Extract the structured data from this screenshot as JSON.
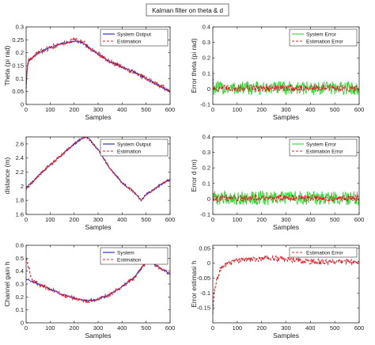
{
  "window": {
    "title": "Kalman filter on theta & d"
  },
  "colors": {
    "system": "#1f1fbf",
    "estimation": "#e0202a",
    "error": "#33d633",
    "axis": "#262626",
    "background": "#ffffff"
  },
  "chart_data": [
    {
      "id": "theta",
      "type": "line",
      "xlabel": "Samples",
      "ylabel": "Theta (pi rad)",
      "xlim": [
        0,
        600
      ],
      "ylim": [
        0,
        0.3
      ],
      "xticks": [
        "0",
        "100",
        "200",
        "300",
        "400",
        "500",
        "600"
      ],
      "yticks": [
        "0",
        "0.05",
        "0.1",
        "0.15",
        "0.2",
        "0.25",
        "0.3"
      ],
      "legend": "top-right",
      "x": [
        0,
        5,
        10,
        25,
        50,
        100,
        150,
        200,
        230,
        260,
        300,
        350,
        400,
        450,
        500,
        550,
        600
      ],
      "series": [
        {
          "name": "System Output",
          "style": "solid",
          "color": "#1f1fbf",
          "noise": 0.004,
          "values": [
            0.07,
            0.14,
            0.17,
            0.18,
            0.2,
            0.22,
            0.235,
            0.245,
            0.24,
            0.22,
            0.195,
            0.165,
            0.145,
            0.125,
            0.1,
            0.075,
            0.05
          ]
        },
        {
          "name": "Estimation",
          "style": "dashed",
          "color": "#e0202a",
          "noise": 0.009,
          "values": [
            0.05,
            0.15,
            0.17,
            0.18,
            0.2,
            0.22,
            0.235,
            0.25,
            0.245,
            0.225,
            0.195,
            0.165,
            0.145,
            0.125,
            0.1,
            0.075,
            0.05
          ]
        }
      ]
    },
    {
      "id": "error-theta",
      "type": "line",
      "xlabel": "Samples",
      "ylabel": "Error theta (pi rad)",
      "xlim": [
        0,
        600
      ],
      "ylim": [
        -0.1,
        0.4
      ],
      "xticks": [
        "0",
        "100",
        "200",
        "300",
        "400",
        "500",
        "600"
      ],
      "yticks": [
        "-0.1",
        "0",
        "0.1",
        "0.2",
        "0.3",
        "0.4"
      ],
      "legend": "top-right",
      "x": [
        0,
        600
      ],
      "series": [
        {
          "name": "System Error",
          "style": "solid",
          "color": "#33d633",
          "noise": 0.045,
          "values": [
            0.005,
            0.005
          ],
          "initial": 0.1
        },
        {
          "name": "Estimation Error",
          "style": "dashed",
          "color": "#e0202a",
          "noise": 0.022,
          "values": [
            0.005,
            0.005
          ],
          "initial": 0.12
        }
      ]
    },
    {
      "id": "distance",
      "type": "line",
      "xlabel": "Samples",
      "ylabel": "distance (m)",
      "xlim": [
        0,
        600
      ],
      "ylim": [
        1.6,
        2.7
      ],
      "xticks": [
        "0",
        "100",
        "200",
        "300",
        "400",
        "500",
        "600"
      ],
      "yticks": [
        "1.6",
        "1.8",
        "2",
        "2.2",
        "2.4",
        "2.6"
      ],
      "legend": "top-right",
      "x": [
        0,
        25,
        50,
        100,
        150,
        200,
        230,
        250,
        260,
        300,
        350,
        400,
        450,
        480,
        500,
        550,
        600
      ],
      "series": [
        {
          "name": "System Output",
          "style": "solid",
          "color": "#1f1fbf",
          "noise": 0.012,
          "values": [
            1.98,
            2.05,
            2.15,
            2.3,
            2.45,
            2.6,
            2.67,
            2.7,
            2.68,
            2.52,
            2.25,
            2.05,
            1.92,
            1.8,
            1.88,
            2.0,
            2.1
          ]
        },
        {
          "name": "Estimation",
          "style": "dashed",
          "color": "#e0202a",
          "noise": 0.018,
          "values": [
            1.96,
            2.05,
            2.15,
            2.3,
            2.45,
            2.6,
            2.67,
            2.7,
            2.68,
            2.52,
            2.25,
            2.05,
            1.92,
            1.8,
            1.88,
            2.0,
            2.1
          ]
        }
      ]
    },
    {
      "id": "error-d",
      "type": "line",
      "xlabel": "Samples",
      "ylabel": "Error d (m)",
      "xlim": [
        0,
        600
      ],
      "ylim": [
        -0.1,
        0.4
      ],
      "xticks": [
        "0",
        "100",
        "200",
        "300",
        "400",
        "500",
        "600"
      ],
      "yticks": [
        "-0.1",
        "0",
        "0.1",
        "0.2",
        "0.3",
        "0.4"
      ],
      "legend": "top-right",
      "x": [
        0,
        600
      ],
      "series": [
        {
          "name": "System Error",
          "style": "solid",
          "color": "#33d633",
          "noise": 0.045,
          "values": [
            0.005,
            0.005
          ],
          "initial": 0.05
        },
        {
          "name": "Estimation Error",
          "style": "dashed",
          "color": "#e0202a",
          "noise": 0.02,
          "values": [
            0.005,
            0.005
          ],
          "initial": 0.04
        }
      ]
    },
    {
      "id": "channel-gain",
      "type": "line",
      "xlabel": "Samples",
      "ylabel": "Channel gain h",
      "xlim": [
        0,
        600
      ],
      "ylim": [
        0,
        0.6
      ],
      "xticks": [
        "0",
        "100",
        "200",
        "300",
        "400",
        "500",
        "600"
      ],
      "yticks": [
        "0",
        "0.1",
        "0.2",
        "0.3",
        "0.4",
        "0.5",
        "0.6"
      ],
      "legend": "top-right",
      "x": [
        0,
        25,
        50,
        100,
        150,
        200,
        250,
        300,
        350,
        400,
        450,
        480,
        500,
        530,
        560,
        600
      ],
      "series": [
        {
          "name": "System",
          "style": "solid",
          "color": "#1f1fbf",
          "noise": 0.007,
          "values": [
            0.34,
            0.32,
            0.3,
            0.26,
            0.22,
            0.19,
            0.17,
            0.18,
            0.22,
            0.28,
            0.35,
            0.42,
            0.47,
            0.46,
            0.42,
            0.38
          ]
        },
        {
          "name": "Estimation",
          "style": "dashed",
          "color": "#e0202a",
          "noise": 0.014,
          "values": [
            0.5,
            0.33,
            0.3,
            0.26,
            0.22,
            0.19,
            0.17,
            0.18,
            0.22,
            0.28,
            0.35,
            0.42,
            0.47,
            0.46,
            0.42,
            0.38
          ]
        }
      ]
    },
    {
      "id": "error-h",
      "type": "line",
      "xlabel": "Samples",
      "ylabel": "Error estimasi h",
      "xlim": [
        0,
        600
      ],
      "ylim": [
        -0.2,
        0.06
      ],
      "xticks": [
        "0",
        "100",
        "200",
        "300",
        "400",
        "500",
        "600"
      ],
      "yticks": [
        "-0.15",
        "-0.1",
        "-0.05",
        "0",
        "0.05"
      ],
      "legend": "top-right",
      "x": [
        0,
        5,
        15,
        30,
        60,
        100,
        200,
        300,
        400,
        500,
        600
      ],
      "series": [
        {
          "name": "Estimation Error",
          "style": "dashed",
          "color": "#e0202a",
          "noise": 0.009,
          "values": [
            -0.17,
            -0.1,
            -0.06,
            -0.02,
            0.0,
            0.01,
            0.015,
            0.015,
            0.005,
            0.005,
            0.005
          ]
        }
      ]
    }
  ]
}
